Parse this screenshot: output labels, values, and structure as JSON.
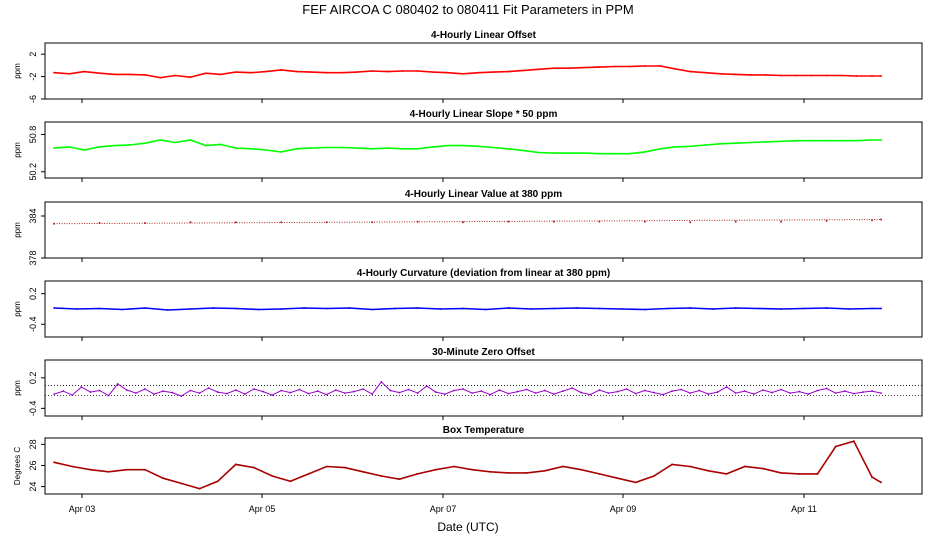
{
  "figure": {
    "title": "FEF   AIRCOA C   080402 to 080411   Fit Parameters in PPM",
    "xlabel": "Date (UTC)",
    "x_ticks": [
      "Apr 03",
      "Apr 05",
      "Apr 07",
      "Apr 09",
      "Apr 11"
    ]
  },
  "chart_data": [
    {
      "type": "line",
      "title": "4-Hourly Linear Offset",
      "ylabel": "ppm",
      "ylim": [
        -6,
        4
      ],
      "yticks": [
        -6,
        -2,
        2
      ],
      "ytick_labels": [
        "-6",
        "-2",
        "2"
      ],
      "xlim": [
        -0.1,
        9.55
      ],
      "color": "#ff0000",
      "x": [
        0,
        0.17,
        0.33,
        0.5,
        0.67,
        0.83,
        1.0,
        1.17,
        1.33,
        1.5,
        1.67,
        1.83,
        2.0,
        2.17,
        2.33,
        2.5,
        2.67,
        2.83,
        3.0,
        3.17,
        3.33,
        3.5,
        3.67,
        3.83,
        4.0,
        4.17,
        4.33,
        4.5,
        4.67,
        4.83,
        5.0,
        5.17,
        5.33,
        5.5,
        5.67,
        5.83,
        6.0,
        6.17,
        6.33,
        6.5,
        6.67,
        6.83,
        7.0,
        7.17,
        7.33,
        7.5,
        7.67,
        7.83,
        8.0,
        8.17,
        8.33,
        8.5,
        8.67,
        8.83,
        9.0,
        9.1
      ],
      "values": [
        -1.3,
        -1.5,
        -1.1,
        -1.4,
        -1.6,
        -1.6,
        -1.7,
        -2.2,
        -1.8,
        -2.1,
        -1.4,
        -1.6,
        -1.2,
        -1.3,
        -1.1,
        -0.8,
        -1.1,
        -1.2,
        -1.3,
        -1.3,
        -1.2,
        -1.0,
        -1.1,
        -1.0,
        -1.0,
        -1.2,
        -1.3,
        -1.5,
        -1.3,
        -1.2,
        -1.1,
        -0.9,
        -0.7,
        -0.5,
        -0.5,
        -0.4,
        -0.3,
        -0.2,
        -0.2,
        -0.1,
        -0.1,
        -0.6,
        -1.1,
        -1.3,
        -1.5,
        -1.6,
        -1.7,
        -1.7,
        -1.8,
        -1.8,
        -1.8,
        -1.8,
        -1.8,
        -1.9,
        -1.9,
        -1.9
      ]
    },
    {
      "type": "line",
      "title": "4-Hourly Linear Slope * 50 ppm",
      "ylabel": "ppm",
      "ylim": [
        50.1,
        51.0
      ],
      "yticks": [
        50.2,
        50.8
      ],
      "ytick_labels": [
        "50.2",
        "50.8"
      ],
      "xlim": [
        -0.1,
        9.55
      ],
      "color": "#00ff00",
      "x": [
        0,
        0.17,
        0.33,
        0.5,
        0.67,
        0.83,
        1.0,
        1.17,
        1.33,
        1.5,
        1.67,
        1.83,
        2.0,
        2.17,
        2.33,
        2.5,
        2.67,
        2.83,
        3.0,
        3.17,
        3.33,
        3.5,
        3.67,
        3.83,
        4.0,
        4.17,
        4.33,
        4.5,
        4.67,
        4.83,
        5.0,
        5.17,
        5.33,
        5.5,
        5.67,
        5.83,
        6.0,
        6.17,
        6.33,
        6.5,
        6.67,
        6.83,
        7.0,
        7.17,
        7.33,
        7.5,
        7.67,
        7.83,
        8.0,
        8.17,
        8.33,
        8.5,
        8.67,
        8.83,
        9.0,
        9.1
      ],
      "values": [
        50.58,
        50.6,
        50.55,
        50.6,
        50.62,
        50.63,
        50.66,
        50.71,
        50.67,
        50.71,
        50.62,
        50.64,
        50.58,
        50.57,
        50.55,
        50.52,
        50.57,
        50.58,
        50.59,
        50.59,
        50.58,
        50.57,
        50.58,
        50.57,
        50.57,
        50.6,
        50.62,
        50.62,
        50.61,
        50.59,
        50.57,
        50.54,
        50.51,
        50.5,
        50.5,
        50.5,
        50.49,
        50.49,
        50.49,
        50.52,
        50.57,
        50.6,
        50.61,
        50.63,
        50.65,
        50.66,
        50.67,
        50.68,
        50.69,
        50.7,
        50.7,
        50.7,
        50.7,
        50.7,
        50.71,
        50.71
      ]
    },
    {
      "type": "scatter",
      "title": "4-Hourly Linear Value at 380 ppm",
      "ylabel": "ppm",
      "ylim": [
        378,
        386
      ],
      "yticks": [
        378,
        384
      ],
      "ytick_labels": [
        "378",
        "384"
      ],
      "xlim": [
        -0.1,
        9.55
      ],
      "color": "#aa2222",
      "x": [
        0,
        0.5,
        1.0,
        1.5,
        2.0,
        2.5,
        3.0,
        3.5,
        4.0,
        4.5,
        5.0,
        5.5,
        6.0,
        6.5,
        7.0,
        7.5,
        8.0,
        8.5,
        9.0,
        9.1
      ],
      "values": [
        382.9,
        383.0,
        383.0,
        383.1,
        383.1,
        383.1,
        383.1,
        383.1,
        383.2,
        383.1,
        383.2,
        383.2,
        383.2,
        383.2,
        383.1,
        383.2,
        383.2,
        383.3,
        383.4,
        383.5
      ]
    },
    {
      "type": "line",
      "title": "4-Hourly Curvature (deviation from linear at 380 ppm)",
      "ylabel": "ppm",
      "ylim": [
        -0.65,
        0.45
      ],
      "yticks": [
        -0.4,
        0.2
      ],
      "ytick_labels": [
        "-0.4",
        "0.2"
      ],
      "xlim": [
        -0.1,
        9.55
      ],
      "color": "#0000ff",
      "x": [
        0,
        0.25,
        0.5,
        0.75,
        1.0,
        1.25,
        1.5,
        1.75,
        2.0,
        2.25,
        2.5,
        2.75,
        3.0,
        3.25,
        3.5,
        3.75,
        4.0,
        4.25,
        4.5,
        4.75,
        5.0,
        5.25,
        5.5,
        5.75,
        6.0,
        6.25,
        6.5,
        6.75,
        7.0,
        7.25,
        7.5,
        7.75,
        8.0,
        8.25,
        8.5,
        8.75,
        9.0,
        9.1
      ],
      "values": [
        -0.08,
        -0.1,
        -0.09,
        -0.11,
        -0.08,
        -0.12,
        -0.1,
        -0.08,
        -0.09,
        -0.11,
        -0.1,
        -0.08,
        -0.09,
        -0.08,
        -0.11,
        -0.09,
        -0.08,
        -0.1,
        -0.09,
        -0.11,
        -0.08,
        -0.1,
        -0.09,
        -0.08,
        -0.09,
        -0.1,
        -0.11,
        -0.09,
        -0.08,
        -0.1,
        -0.08,
        -0.09,
        -0.1,
        -0.09,
        -0.08,
        -0.1,
        -0.09,
        -0.09
      ]
    },
    {
      "type": "line",
      "title": "30-Minute Zero Offset",
      "ylabel": "ppm",
      "ylim": [
        -0.55,
        0.55
      ],
      "yticks": [
        -0.4,
        0.2
      ],
      "ytick_labels": [
        "-0.4",
        "0.2"
      ],
      "xlim": [
        -0.1,
        9.55
      ],
      "reference_lines": [
        0.05,
        -0.15
      ],
      "color": "#9900cc",
      "x": [
        0,
        0.1,
        0.2,
        0.3,
        0.4,
        0.5,
        0.6,
        0.7,
        0.8,
        0.9,
        1.0,
        1.1,
        1.2,
        1.3,
        1.4,
        1.5,
        1.6,
        1.7,
        1.8,
        1.9,
        2.0,
        2.1,
        2.2,
        2.3,
        2.4,
        2.5,
        2.6,
        2.7,
        2.8,
        2.9,
        3.0,
        3.1,
        3.2,
        3.3,
        3.4,
        3.5,
        3.6,
        3.7,
        3.8,
        3.9,
        4.0,
        4.1,
        4.2,
        4.3,
        4.4,
        4.5,
        4.6,
        4.7,
        4.8,
        4.9,
        5.0,
        5.1,
        5.2,
        5.3,
        5.4,
        5.5,
        5.6,
        5.7,
        5.8,
        5.9,
        6.0,
        6.1,
        6.2,
        6.3,
        6.4,
        6.5,
        6.6,
        6.7,
        6.8,
        6.9,
        7.0,
        7.1,
        7.2,
        7.3,
        7.4,
        7.5,
        7.6,
        7.7,
        7.8,
        7.9,
        8.0,
        8.1,
        8.2,
        8.3,
        8.4,
        8.5,
        8.6,
        8.7,
        8.8,
        8.9,
        9.0,
        9.1
      ],
      "values": [
        -0.12,
        -0.06,
        -0.14,
        0.02,
        -0.08,
        -0.05,
        -0.15,
        0.08,
        -0.04,
        -0.1,
        -0.02,
        -0.12,
        -0.06,
        -0.09,
        -0.16,
        -0.05,
        -0.1,
        0.0,
        -0.08,
        -0.11,
        -0.04,
        -0.12,
        -0.02,
        -0.07,
        -0.14,
        -0.05,
        -0.09,
        -0.03,
        -0.11,
        -0.06,
        -0.13,
        -0.04,
        -0.1,
        -0.07,
        -0.02,
        -0.12,
        0.12,
        -0.05,
        -0.09,
        -0.03,
        -0.1,
        0.04,
        -0.08,
        -0.12,
        -0.05,
        -0.02,
        -0.1,
        -0.06,
        -0.13,
        -0.04,
        -0.11,
        -0.07,
        -0.03,
        -0.1,
        -0.05,
        -0.12,
        -0.06,
        0.0,
        -0.09,
        -0.13,
        -0.04,
        -0.1,
        -0.07,
        -0.02,
        -0.11,
        -0.05,
        -0.09,
        -0.13,
        -0.06,
        -0.03,
        -0.1,
        -0.05,
        -0.12,
        -0.08,
        0.02,
        -0.1,
        -0.06,
        -0.12,
        -0.04,
        -0.09,
        -0.03,
        -0.1,
        -0.07,
        -0.12,
        -0.05,
        -0.01,
        -0.1,
        -0.06,
        -0.11,
        -0.08,
        -0.06,
        -0.1
      ]
    },
    {
      "type": "line",
      "title": "Box Temperature",
      "ylabel": "Degrees C",
      "ylim": [
        23.3,
        28.6
      ],
      "yticks": [
        24,
        26,
        28
      ],
      "ytick_labels": [
        "24",
        "26",
        "28"
      ],
      "xlim": [
        -0.1,
        9.55
      ],
      "color": "#aa0000",
      "x": [
        0,
        0.2,
        0.4,
        0.6,
        0.8,
        1.0,
        1.2,
        1.4,
        1.6,
        1.8,
        2.0,
        2.2,
        2.4,
        2.6,
        2.8,
        3.0,
        3.2,
        3.4,
        3.6,
        3.8,
        4.0,
        4.2,
        4.4,
        4.6,
        4.8,
        5.0,
        5.2,
        5.4,
        5.6,
        5.8,
        6.0,
        6.2,
        6.4,
        6.6,
        6.8,
        7.0,
        7.2,
        7.4,
        7.6,
        7.8,
        8.0,
        8.2,
        8.4,
        8.6,
        8.8,
        9.0,
        9.1
      ],
      "values": [
        26.3,
        25.9,
        25.6,
        25.4,
        25.6,
        25.6,
        24.8,
        24.3,
        23.8,
        24.5,
        26.1,
        25.8,
        25.0,
        24.5,
        25.2,
        25.9,
        25.8,
        25.4,
        25.0,
        24.7,
        25.2,
        25.6,
        25.9,
        25.6,
        25.4,
        25.3,
        25.3,
        25.5,
        25.9,
        25.6,
        25.2,
        24.8,
        24.4,
        25.0,
        26.1,
        25.9,
        25.5,
        25.2,
        25.9,
        25.7,
        25.3,
        25.2,
        25.2,
        27.8,
        28.3,
        24.9,
        24.4
      ]
    }
  ]
}
